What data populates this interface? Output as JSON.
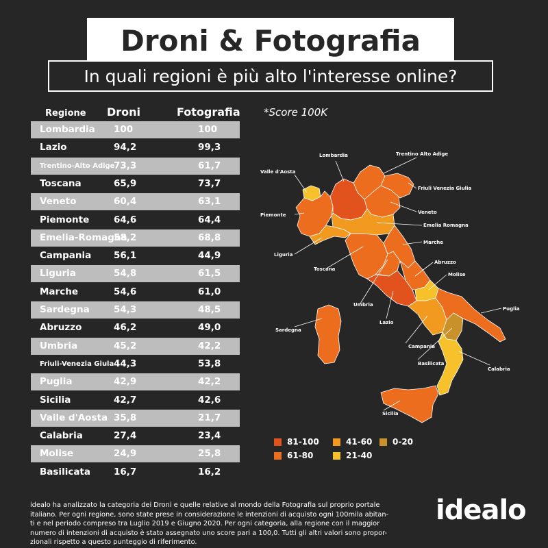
{
  "title": "Droni & Fotografia",
  "subtitle": "In quali regioni è più alto l'interesse online?",
  "score_note": "*Score 100K",
  "colors": {
    "c81_100": "#e2521c",
    "c61_80": "#ec6d1e",
    "c41_60": "#f29a1f",
    "c21_40": "#f6c12a",
    "c0_20": "#c8912a",
    "map_border": "#ffffff"
  },
  "chart_data": {
    "type": "table",
    "columns": [
      "Regione",
      "Droni",
      "Fotografia"
    ],
    "rows": [
      [
        "Lombardia",
        "100",
        "100"
      ],
      [
        "Lazio",
        "94,2",
        "99,3"
      ],
      [
        "Trentino-Alto Adige",
        "73,3",
        "61,7"
      ],
      [
        "Toscana",
        "65,9",
        "73,7"
      ],
      [
        "Veneto",
        "60,4",
        "63,1"
      ],
      [
        "Piemonte",
        "64,6",
        "64,4"
      ],
      [
        "Emelia-Romagna",
        "58,2",
        "68,8"
      ],
      [
        "Campania",
        "56,1",
        "44,9"
      ],
      [
        "Liguria",
        "54,8",
        "61,5"
      ],
      [
        "Marche",
        "54,6",
        "61,0"
      ],
      [
        "Sardegna",
        "54,3",
        "48,5"
      ],
      [
        "Abruzzo",
        "46,2",
        "49,0"
      ],
      [
        "Umbria",
        "45,2",
        "42,2"
      ],
      [
        "Friuli-Venezia Giula",
        "44,3",
        "53,8"
      ],
      [
        "Puglia",
        "42,9",
        "42,2"
      ],
      [
        "Sicilia",
        "42,7",
        "42,6"
      ],
      [
        "Valle d'Aosta",
        "35,8",
        "21,7"
      ],
      [
        "Calabria",
        "27,4",
        "23,4"
      ],
      [
        "Molise",
        "24,9",
        "25,8"
      ],
      [
        "Basilicata",
        "16,7",
        "16,2"
      ]
    ]
  },
  "map": {
    "labels": {
      "lombardia": "Lombardia",
      "trentino": "Trentino Alto Adige",
      "valle": "Valle d'Aosta",
      "friuli": "Friuli Venezia Giulia",
      "piemonte": "Piemonte",
      "veneto": "Veneto",
      "emilia": "Emelia Romagna",
      "liguria": "Liguria",
      "marche": "Marche",
      "toscana": "Toscana",
      "abruzzo": "Abruzzo",
      "molise": "Molise",
      "umbria": "Umbria",
      "puglia": "Puglia",
      "lazio": "Lazio",
      "sardegna": "Sardegna",
      "campania": "Campania",
      "basilicata": "Basilicata",
      "calabria": "Calabria",
      "sicilia": "Sicilia"
    }
  },
  "legend": [
    {
      "label": "81-100",
      "color": "#e2521c"
    },
    {
      "label": "41-60",
      "color": "#f29a1f"
    },
    {
      "label": "0-20",
      "color": "#c8912a"
    },
    {
      "label": "61-80",
      "color": "#ec6d1e"
    },
    {
      "label": "21-40",
      "color": "#f6c12a"
    }
  ],
  "footer": {
    "line1": "idealo ha analizzato la categoria dei Droni e quelle relative al mondo della Fotografia sul proprio portale",
    "line2": "italiano. Per ogni regione, sono state prese in considerazione le intenzioni di acquisto ogni 100mila abitan-",
    "line3": "ti e nel periodo compreso tra Luglio 2019 e Giugno 2020. Per ogni categoria, alla regione con il maggior",
    "line4": "numero di intenzioni di acquisto è stato assegnato uno score pari a 100,0. Tutti gli altri valori sono propor-",
    "line5": "zionali rispetto a questo punteggio di riferimento."
  },
  "logo": "idealo"
}
